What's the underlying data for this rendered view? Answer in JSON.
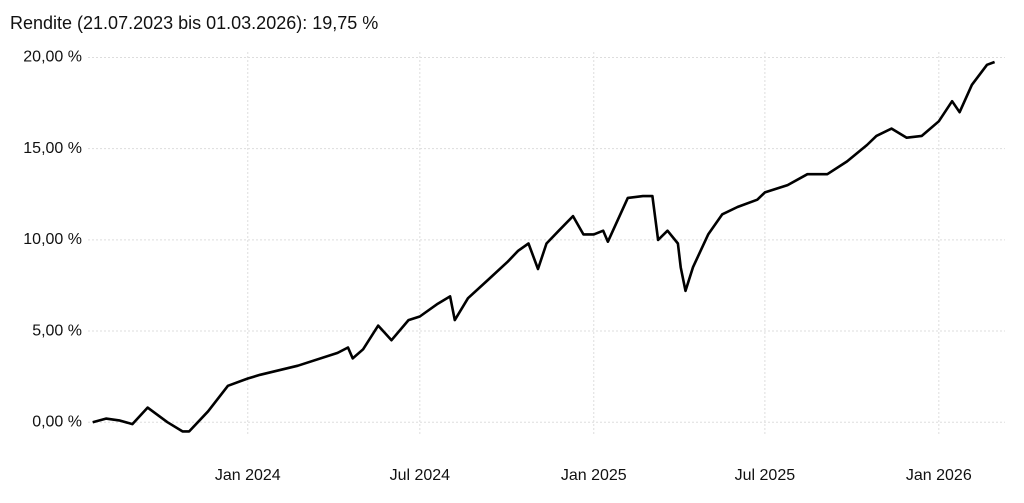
{
  "chart_data": {
    "type": "line",
    "title": "Rendite (21.07.2023 bis 01.03.2026): 19,75 %",
    "x": [
      "2023-07-21",
      "2023-08-04",
      "2023-08-18",
      "2023-09-01",
      "2023-09-17",
      "2023-10-08",
      "2023-10-24",
      "2023-10-31",
      "2023-11-20",
      "2023-12-11",
      "2024-01-01",
      "2024-01-14",
      "2024-02-23",
      "2024-04-05",
      "2024-04-16",
      "2024-04-21",
      "2024-05-02",
      "2024-05-18",
      "2024-06-01",
      "2024-06-19",
      "2024-07-01",
      "2024-07-20",
      "2024-08-02",
      "2024-08-07",
      "2024-08-21",
      "2024-09-11",
      "2024-10-02",
      "2024-10-13",
      "2024-10-24",
      "2024-11-03",
      "2024-11-12",
      "2024-11-25",
      "2024-12-10",
      "2024-12-21",
      "2025-01-01",
      "2025-01-11",
      "2025-01-16",
      "2025-02-06",
      "2025-02-22",
      "2025-03-04",
      "2025-03-10",
      "2025-03-20",
      "2025-03-31",
      "2025-04-03",
      "2025-04-08",
      "2025-04-16",
      "2025-05-02",
      "2025-05-17",
      "2025-06-02",
      "2025-06-23",
      "2025-07-01",
      "2025-07-25",
      "2025-08-15",
      "2025-09-05",
      "2025-09-26",
      "2025-10-17",
      "2025-10-27",
      "2025-11-12",
      "2025-11-28",
      "2025-12-14",
      "2026-01-01",
      "2026-01-15",
      "2026-01-23",
      "2026-02-05",
      "2026-02-21",
      "2026-03-01"
    ],
    "series": [
      {
        "name": "Rendite",
        "color": "#000000",
        "values": [
          0.0,
          0.2,
          0.1,
          -0.1,
          0.8,
          0.0,
          -0.5,
          -0.5,
          0.6,
          2.0,
          2.4,
          2.6,
          3.1,
          3.8,
          4.1,
          3.5,
          4.0,
          5.3,
          4.5,
          5.6,
          5.8,
          6.5,
          6.9,
          5.6,
          6.8,
          7.8,
          8.8,
          9.4,
          9.8,
          8.4,
          9.8,
          10.5,
          11.3,
          10.3,
          10.3,
          10.5,
          9.9,
          12.3,
          12.4,
          12.4,
          10.0,
          10.5,
          9.8,
          8.5,
          7.2,
          8.5,
          10.3,
          11.4,
          11.8,
          12.2,
          12.6,
          13.0,
          13.6,
          13.6,
          14.3,
          15.2,
          15.7,
          16.1,
          15.6,
          15.7,
          16.5,
          17.6,
          17.0,
          18.5,
          19.6,
          19.75
        ]
      }
    ],
    "xlim": [
      "2023-07-16",
      "2026-03-12"
    ],
    "xticks": [
      {
        "value": "2024-01-01",
        "label": "Jan 2024"
      },
      {
        "value": "2024-07-01",
        "label": "Jul 2024"
      },
      {
        "value": "2025-01-01",
        "label": "Jan 2025"
      },
      {
        "value": "2025-07-01",
        "label": "Jul 2025"
      },
      {
        "value": "2026-01-01",
        "label": "Jan 2026"
      }
    ],
    "ylim": [
      -0.7,
      20.3
    ],
    "yticks": [
      {
        "value": 0,
        "label": "0,00 %"
      },
      {
        "value": 5,
        "label": "5,00 %"
      },
      {
        "value": 10,
        "label": "10,00 %"
      },
      {
        "value": 15,
        "label": "15,00 %"
      },
      {
        "value": 20,
        "label": "20,00 %"
      }
    ],
    "grid": true
  }
}
